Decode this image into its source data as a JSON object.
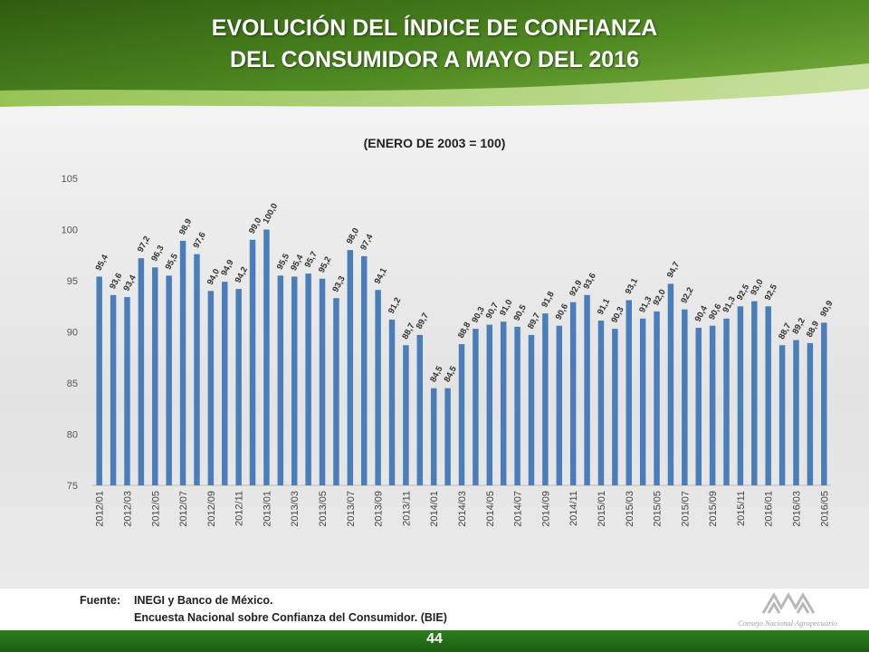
{
  "header": {
    "title_line1": "EVOLUCIÓN DEL ÍNDICE DE CONFIANZA",
    "title_line2": "DEL CONSUMIDOR A MAYO DEL 2016"
  },
  "colors": {
    "bar": "#4a7ebb",
    "banner_dark": "#3d6b1a",
    "banner_light": "#8cc04a"
  },
  "chart_data": {
    "type": "bar",
    "title": "",
    "subtitle": "(ENERO DE 2003 = 100)",
    "xlabel": "",
    "ylabel": "",
    "ylim": [
      75,
      105
    ],
    "yticks": [
      75,
      80,
      85,
      90,
      95,
      100,
      105
    ],
    "grid": false,
    "legend": "none",
    "categories": [
      "2012/01",
      "2012/02",
      "2012/03",
      "2012/04",
      "2012/05",
      "2012/06",
      "2012/07",
      "2012/08",
      "2012/09",
      "2012/10",
      "2012/11",
      "2012/12",
      "2013/01",
      "2013/02",
      "2013/03",
      "2013/04",
      "2013/05",
      "2013/06",
      "2013/07",
      "2013/08",
      "2013/09",
      "2013/10",
      "2013/11",
      "2013/12",
      "2014/01",
      "2014/02",
      "2014/03",
      "2014/04",
      "2014/05",
      "2014/06",
      "2014/07",
      "2014/08",
      "2014/09",
      "2014/10",
      "2014/11",
      "2014/12",
      "2015/01",
      "2015/02",
      "2015/03",
      "2015/04",
      "2015/05",
      "2015/06",
      "2015/07",
      "2015/08",
      "2015/09",
      "2015/10",
      "2015/11",
      "2015/12",
      "2016/01",
      "2016/02",
      "2016/03",
      "2016/04",
      "2016/05"
    ],
    "values": [
      95.4,
      93.6,
      93.4,
      97.2,
      96.3,
      95.5,
      98.9,
      97.6,
      94.0,
      94.9,
      94.2,
      99.0,
      100.0,
      95.5,
      95.4,
      95.7,
      95.2,
      93.3,
      98.0,
      97.4,
      94.1,
      91.2,
      88.7,
      89.7,
      84.5,
      84.5,
      88.8,
      90.3,
      90.7,
      91.0,
      90.5,
      89.7,
      91.8,
      90.6,
      92.9,
      93.6,
      91.1,
      90.3,
      93.1,
      91.3,
      92.0,
      94.7,
      92.2,
      90.4,
      90.6,
      91.3,
      92.5,
      93.0,
      92.5,
      88.7,
      89.2,
      88.9,
      90.9
    ],
    "labels": [
      "95,4",
      "93,6",
      "93,4",
      "97,2",
      "96,3",
      "95,5",
      "98,9",
      "97,6",
      "94,0",
      "94,9",
      "94,2",
      "99,0",
      "100,0",
      "95,5",
      "95,4",
      "95,7",
      "95,2",
      "93,3",
      "98,0",
      "97,4",
      "94,1",
      "91,2",
      "88,7",
      "89,7",
      "84,5",
      "84,5",
      "88,8",
      "90,3",
      "90,7",
      "91,0",
      "90,5",
      "89,7",
      "91,8",
      "90,6",
      "92,9",
      "93,6",
      "91,1",
      "90,3",
      "93,1",
      "91,3",
      "92,0",
      "94,7",
      "92,2",
      "90,4",
      "90,6",
      "91,3",
      "92,5",
      "93,0",
      "92,5",
      "88,7",
      "89,2",
      "88,9",
      "90,9"
    ],
    "xtick_labels": [
      "2012/01",
      "2012/03",
      "2012/05",
      "2012/07",
      "2012/09",
      "2012/11",
      "2013/01",
      "2013/03",
      "2013/05",
      "2013/07",
      "2013/09",
      "2013/11",
      "2014/01",
      "2014/03",
      "2014/05",
      "2014/07",
      "2014/09",
      "2014/11",
      "2015/01",
      "2015/03",
      "2015/05",
      "2015/07",
      "2015/09",
      "2015/11",
      "2016/01",
      "2016/03",
      "2016/05"
    ]
  },
  "footer": {
    "source_label": "Fuente:",
    "source_line1": "INEGI y Banco de México.",
    "source_line2": "Encuesta Nacional sobre Confianza del Consumidor.  (BIE)",
    "logo_text": "Consejo Nacional Agropecuario",
    "page_number": "44"
  }
}
